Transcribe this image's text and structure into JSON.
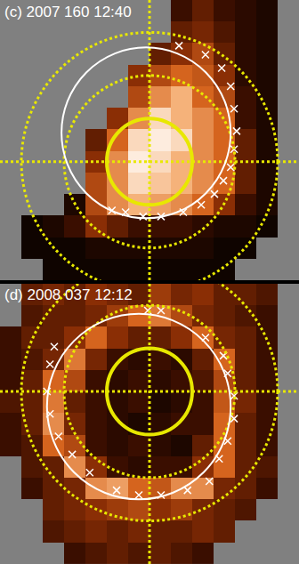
{
  "chart_data": [
    {
      "type": "heatmap",
      "title": "(c) 2007 160 12:40",
      "xlim": [
        -35,
        35
      ],
      "ylim": [
        -27.5,
        37.5
      ],
      "zlim": [
        0,
        1
      ],
      "tick_labels": false,
      "x": [
        -32.5,
        -27.5,
        -22.5,
        -17.5,
        -12.5,
        -7.5,
        -2.5,
        2.5,
        7.5,
        12.5,
        17.5,
        22.5,
        27.5,
        32.5
      ],
      "y": [
        -25,
        -20,
        -15,
        -10,
        -5,
        0,
        5,
        10,
        15,
        20,
        25,
        30,
        35
      ],
      "z": [
        [
          null,
          null,
          0.05,
          0.05,
          0.05,
          0.05,
          0.05,
          0.05,
          0.05,
          0.05,
          0.05,
          null,
          null,
          null
        ],
        [
          null,
          0.05,
          0.05,
          0.05,
          0.1,
          0.1,
          0.1,
          0.1,
          0.1,
          0.1,
          0.05,
          0.05,
          null,
          null
        ],
        [
          null,
          0.05,
          0.1,
          0.2,
          0.4,
          0.3,
          0.2,
          0.2,
          0.2,
          0.15,
          0.1,
          0.1,
          0.05,
          null
        ],
        [
          null,
          null,
          null,
          0.1,
          0.5,
          0.7,
          0.8,
          0.75,
          0.7,
          0.6,
          0.4,
          0.2,
          0.1,
          null
        ],
        [
          null,
          null,
          null,
          null,
          0.5,
          0.7,
          0.9,
          0.85,
          0.8,
          0.7,
          0.6,
          0.3,
          0.1,
          null
        ],
        [
          null,
          null,
          null,
          null,
          0.4,
          0.7,
          0.95,
          0.9,
          0.8,
          0.7,
          0.6,
          0.3,
          0.1,
          null
        ],
        [
          null,
          null,
          null,
          null,
          0.3,
          0.6,
          0.9,
          0.95,
          0.9,
          0.7,
          0.6,
          0.3,
          0.1,
          null
        ],
        [
          null,
          null,
          null,
          null,
          null,
          0.4,
          0.7,
          0.9,
          0.8,
          0.7,
          0.6,
          0.2,
          0.1,
          null
        ],
        [
          null,
          null,
          null,
          null,
          null,
          null,
          0.5,
          0.7,
          0.8,
          0.6,
          0.5,
          0.2,
          0.1,
          null
        ],
        [
          null,
          null,
          null,
          null,
          null,
          null,
          0.4,
          0.5,
          0.6,
          0.55,
          0.4,
          0.15,
          0.1,
          null
        ],
        [
          null,
          null,
          null,
          null,
          null,
          null,
          null,
          0.3,
          0.4,
          0.5,
          0.3,
          0.15,
          0.1,
          null
        ],
        [
          null,
          null,
          null,
          null,
          null,
          null,
          null,
          null,
          0.3,
          0.35,
          0.25,
          0.15,
          0.1,
          null
        ],
        [
          null,
          null,
          null,
          null,
          null,
          null,
          null,
          null,
          0.2,
          0.3,
          0.2,
          0.15,
          0.1,
          null
        ]
      ],
      "grid_circles": [
        10,
        20,
        30
      ],
      "fit_circle": {
        "center": [
          -0.8,
          6.7
        ],
        "radius": 19.8
      },
      "markers": {
        "x": [
          6.9,
          13.1,
          16.9,
          19.0,
          19.8,
          20.4,
          19.8,
          19.0,
          17.3,
          15.2,
          12.1,
          7.9,
          2.7,
          -1.5,
          -5.6,
          -8.8
        ],
        "y": [
          26.9,
          24.8,
          21.7,
          17.5,
          12.3,
          7.1,
          2.9,
          -1.3,
          -4.4,
          -7.5,
          -10.0,
          -11.7,
          -12.7,
          -12.7,
          -11.7,
          -11.3
        ]
      }
    },
    {
      "type": "heatmap",
      "title": "(d) 2008 037 12:12",
      "xlim": [
        -35,
        35
      ],
      "ylim": [
        -40,
        25
      ],
      "zlim": [
        0,
        1
      ],
      "tick_labels": false,
      "x": [
        -32.5,
        -27.5,
        -22.5,
        -17.5,
        -12.5,
        -7.5,
        -2.5,
        2.5,
        7.5,
        12.5,
        17.5,
        22.5,
        27.5,
        32.5
      ],
      "y": [
        -37.5,
        -32.5,
        -27.5,
        -22.5,
        -17.5,
        -12.5,
        -7.5,
        -2.5,
        2.5,
        7.5,
        12.5,
        17.5,
        22.5
      ],
      "z": [
        [
          null,
          null,
          null,
          0.2,
          0.25,
          0.3,
          0.25,
          0.3,
          0.25,
          0.2,
          null,
          null,
          null,
          null
        ],
        [
          null,
          null,
          0.25,
          0.3,
          0.35,
          0.3,
          0.35,
          0.3,
          0.3,
          0.35,
          0.3,
          null,
          null,
          null
        ],
        [
          null,
          null,
          0.3,
          0.35,
          0.4,
          0.45,
          0.5,
          0.4,
          0.45,
          0.35,
          0.3,
          0.25,
          null,
          null
        ],
        [
          null,
          0.2,
          0.3,
          0.35,
          0.7,
          0.75,
          0.6,
          0.55,
          0.7,
          0.7,
          0.35,
          0.3,
          0.2,
          null
        ],
        [
          null,
          0.25,
          0.3,
          0.7,
          0.4,
          0.2,
          0.15,
          0.2,
          0.2,
          0.4,
          0.6,
          0.3,
          0.25,
          null
        ],
        [
          0.2,
          0.25,
          0.6,
          0.5,
          0.2,
          0.15,
          0.2,
          0.15,
          0.1,
          0.3,
          0.6,
          0.3,
          0.2,
          null
        ],
        [
          0.2,
          0.3,
          0.7,
          0.35,
          0.2,
          0.15,
          0.1,
          0.15,
          0.2,
          0.2,
          0.6,
          0.3,
          0.2,
          null
        ],
        [
          0.25,
          0.3,
          0.65,
          0.3,
          0.2,
          0.15,
          0.2,
          0.1,
          0.15,
          0.2,
          0.55,
          0.35,
          0.2,
          null
        ],
        [
          0.2,
          0.3,
          0.6,
          0.5,
          0.2,
          0.15,
          0.2,
          0.15,
          0.2,
          0.25,
          0.5,
          0.3,
          0.2,
          null
        ],
        [
          0.2,
          0.25,
          0.35,
          0.65,
          0.35,
          0.2,
          0.15,
          0.2,
          0.15,
          0.3,
          0.6,
          0.3,
          0.2,
          null
        ],
        [
          0.2,
          0.3,
          0.3,
          0.4,
          0.6,
          0.4,
          0.3,
          0.3,
          0.4,
          0.6,
          0.35,
          0.3,
          0.2,
          null
        ],
        [
          null,
          0.25,
          0.3,
          0.3,
          0.35,
          0.45,
          0.6,
          0.65,
          0.5,
          0.35,
          0.3,
          0.25,
          0.2,
          null
        ],
        [
          null,
          0.3,
          0.35,
          0.3,
          0.4,
          0.35,
          0.3,
          0.45,
          0.35,
          0.4,
          0.3,
          0.3,
          0.25,
          null
        ]
      ],
      "grid_circles": [
        10,
        20,
        30
      ],
      "fit_circle": {
        "center": [
          -2.5,
          -3.5
        ],
        "radius": 21.5
      },
      "markers": {
        "x": [
          -0.4,
          2.7,
          -22.3,
          -23.3,
          -24.0,
          -23.3,
          -21.3,
          -18.1,
          -14.0,
          -7.7,
          -2.5,
          2.7,
          8.9,
          14.0,
          13.1,
          17.3,
          18.3,
          19.8,
          19.8,
          18.3,
          16.3
        ],
        "y": [
          18.8,
          18.8,
          10.4,
          6.3,
          0,
          -5.2,
          -10.4,
          -14.6,
          -18.8,
          -22.9,
          -24.0,
          -24.0,
          -22.9,
          -20.8,
          12.5,
          8.3,
          4.2,
          -1.0,
          -6.3,
          -11.5,
          -15.6
        ]
      }
    }
  ]
}
